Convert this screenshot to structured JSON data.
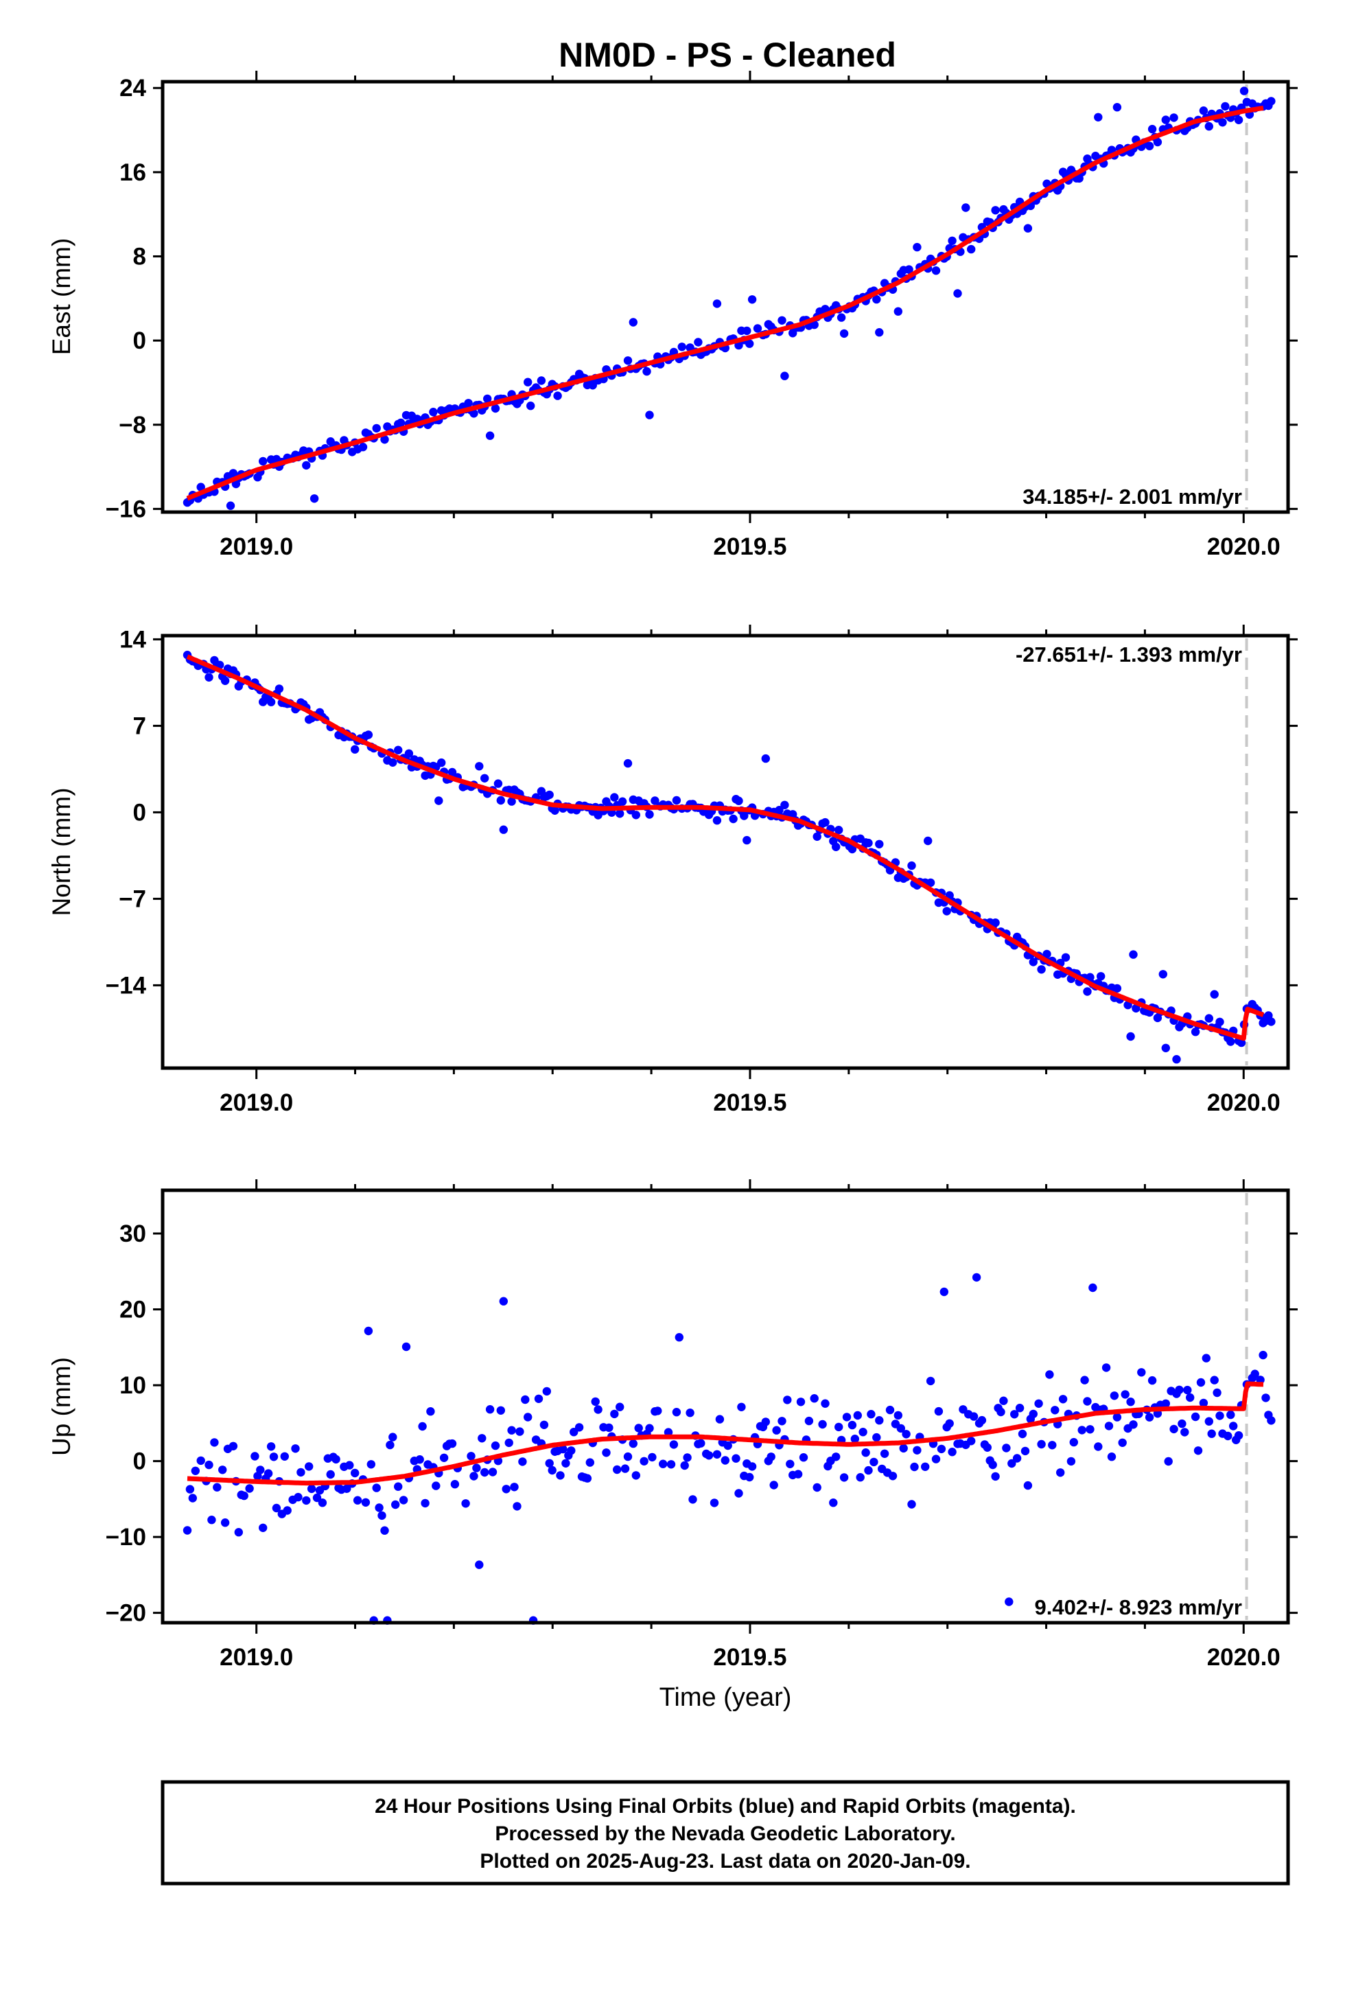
{
  "figure": {
    "title": "NM0D  - PS - Cleaned",
    "xlabel": "Time (year)",
    "footer": [
      "24 Hour Positions Using Final Orbits (blue) and Rapid Orbits (magenta).",
      "Processed by the Nevada Geodetic Laboratory.",
      "Plotted on 2025-Aug-23. Last data on 2020-Jan-09."
    ],
    "colors": {
      "points": "#0000ff",
      "model": "#ff0000",
      "marker_line": "#c8c8c8",
      "frame": "#000000"
    }
  },
  "chart_data": [
    {
      "type": "scatter",
      "component": "east",
      "ylabel": "East (mm)",
      "rate_text": "34.185+/- 2.001 mm/yr",
      "xlim": [
        2018.905,
        2020.045
      ],
      "ylim": [
        -16.3,
        24.6
      ],
      "xticks": [
        2019.0,
        2019.5,
        2020.0
      ],
      "xtick_labels": [
        "2019.0",
        "2019.5",
        "2020.0"
      ],
      "yticks": [
        -16,
        -8,
        0,
        8,
        16,
        24
      ],
      "ytick_labels": [
        "−16",
        "−8",
        "0",
        "8",
        "16",
        "24"
      ],
      "equipment_change": 2020.003,
      "model": {
        "x": [
          2018.93,
          2019.0,
          2019.1,
          2019.2,
          2019.3,
          2019.4,
          2019.5,
          2019.55,
          2019.6,
          2019.65,
          2019.7,
          2019.75,
          2019.8,
          2019.85,
          2019.9,
          2019.95,
          2020.0,
          2020.02
        ],
        "y": [
          -15.0,
          -12.3,
          -9.7,
          -6.9,
          -4.5,
          -2.1,
          0.3,
          1.5,
          3.3,
          5.5,
          8.2,
          11.2,
          14.3,
          16.9,
          19.0,
          20.8,
          21.8,
          22.1
        ]
      },
      "points_seed": 11,
      "noise": 1.1,
      "outlier_rate": 0.03,
      "outlier_amp": 3.5,
      "x_end": 2020.03
    },
    {
      "type": "scatter",
      "component": "north",
      "ylabel": "North (mm)",
      "rate_text": "-27.651+/- 1.393 mm/yr",
      "xlim": [
        2018.905,
        2020.045
      ],
      "ylim": [
        -20.7,
        14.3
      ],
      "xticks": [
        2019.0,
        2019.5,
        2020.0
      ],
      "xtick_labels": [
        "2019.0",
        "2019.5",
        "2020.0"
      ],
      "yticks": [
        -14,
        -7,
        0,
        7,
        14
      ],
      "ytick_labels": [
        "−14",
        "−7",
        "0",
        "7",
        "14"
      ],
      "equipment_change": 2020.003,
      "model": {
        "x": [
          2018.93,
          2018.98,
          2019.05,
          2019.1,
          2019.15,
          2019.2,
          2019.25,
          2019.3,
          2019.35,
          2019.4,
          2019.45,
          2019.5,
          2019.55,
          2019.6,
          2019.65,
          2019.7,
          2019.75,
          2019.8,
          2019.85,
          2019.9,
          2019.95,
          2020.0,
          2020.003,
          2020.02
        ],
        "y": [
          12.6,
          10.9,
          8.3,
          6.0,
          4.2,
          2.7,
          1.5,
          0.6,
          0.3,
          0.4,
          0.4,
          0.2,
          -0.7,
          -2.3,
          -4.6,
          -7.1,
          -9.6,
          -12.0,
          -14.1,
          -15.7,
          -17.1,
          -18.3,
          -15.9,
          -16.4
        ]
      },
      "points_seed": 23,
      "noise": 1.0,
      "outlier_rate": 0.03,
      "outlier_amp": 3.0,
      "x_end": 2020.03
    },
    {
      "type": "scatter",
      "component": "up",
      "ylabel": "Up (mm)",
      "rate_text": "9.402+/- 8.923 mm/yr",
      "xlim": [
        2018.905,
        2020.045
      ],
      "ylim": [
        -21.3,
        35.7
      ],
      "xticks": [
        2019.0,
        2019.5,
        2020.0
      ],
      "xtick_labels": [
        "2019.0",
        "2019.5",
        "2020.0"
      ],
      "yticks": [
        -20,
        -10,
        0,
        10,
        20,
        30
      ],
      "ytick_labels": [
        "−20",
        "−10",
        "0",
        "10",
        "20",
        "30"
      ],
      "equipment_change": 2020.003,
      "model": {
        "x": [
          2018.93,
          2019.0,
          2019.05,
          2019.1,
          2019.15,
          2019.2,
          2019.25,
          2019.3,
          2019.35,
          2019.4,
          2019.45,
          2019.5,
          2019.55,
          2019.6,
          2019.65,
          2019.7,
          2019.75,
          2019.8,
          2019.85,
          2019.9,
          2019.95,
          2020.0,
          2020.003,
          2020.02
        ],
        "y": [
          -2.3,
          -2.7,
          -2.9,
          -2.8,
          -2.0,
          -0.7,
          0.8,
          2.1,
          2.9,
          3.2,
          3.2,
          2.8,
          2.4,
          2.2,
          2.4,
          3.0,
          4.0,
          5.2,
          6.3,
          6.8,
          7.0,
          6.9,
          10.2,
          10.1
        ]
      },
      "points_seed": 37,
      "noise": 8.0,
      "outlier_rate": 0.06,
      "outlier_amp": 18,
      "x_end": 2020.03
    }
  ]
}
